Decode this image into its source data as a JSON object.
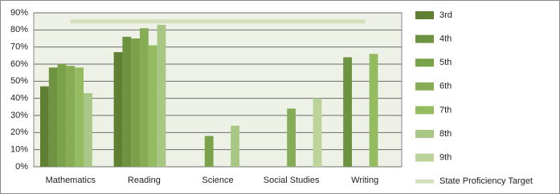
{
  "chart_data": {
    "type": "bar",
    "categories": [
      "Mathematics",
      "Reading",
      "Science",
      "Social Studies",
      "Writing"
    ],
    "series": [
      {
        "name": "3rd",
        "color": "#5f7f32",
        "values": [
          47,
          67,
          null,
          null,
          null
        ]
      },
      {
        "name": "4th",
        "color": "#6e9340",
        "values": [
          58,
          76,
          null,
          null,
          64
        ]
      },
      {
        "name": "5th",
        "color": "#7aa24a",
        "values": [
          60,
          75,
          18,
          null,
          null
        ]
      },
      {
        "name": "6th",
        "color": "#86ad55",
        "values": [
          59,
          81,
          null,
          34,
          null
        ]
      },
      {
        "name": "7th",
        "color": "#94bb5f",
        "values": [
          58,
          71,
          null,
          null,
          66
        ]
      },
      {
        "name": "8th",
        "color": "#a9c784",
        "values": [
          43,
          83,
          24,
          null,
          null
        ]
      },
      {
        "name": "9th",
        "color": "#bdd39c",
        "values": [
          null,
          null,
          null,
          40,
          null
        ]
      },
      {
        "name": "State Proficiency Target",
        "type": "line",
        "color": "#d3e0bb",
        "values": [
          85,
          85,
          85,
          85,
          85
        ]
      }
    ],
    "ylim": [
      0,
      90
    ],
    "yticks": [
      {
        "value": 0,
        "label": "0%"
      },
      {
        "value": 10,
        "label": "10%"
      },
      {
        "value": 20,
        "label": "20%"
      },
      {
        "value": 30,
        "label": "30%"
      },
      {
        "value": 40,
        "label": "40%"
      },
      {
        "value": 50,
        "label": "50%"
      },
      {
        "value": 60,
        "label": "60%"
      },
      {
        "value": 70,
        "label": "70%"
      },
      {
        "value": 80,
        "label": "80%"
      },
      {
        "value": 90,
        "label": "90%"
      }
    ],
    "grid": true,
    "legend": "right"
  }
}
